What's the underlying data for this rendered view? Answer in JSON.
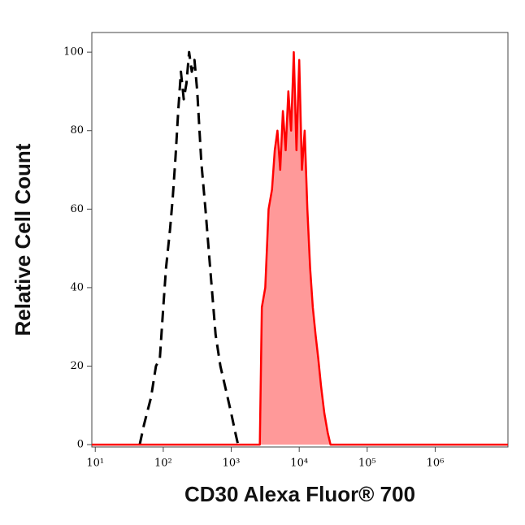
{
  "chart_data": {
    "type": "histogram-overlay",
    "xlabel": "CD30 Alexa Fluor® 700",
    "ylabel": "Relative Cell Count",
    "xscale": "log",
    "xlim": [
      8.9,
      11750000
    ],
    "xticks": [
      {
        "value": 10,
        "label": "10¹"
      },
      {
        "value": 100,
        "label": "10²"
      },
      {
        "value": 1000,
        "label": "10³"
      },
      {
        "value": 10000,
        "label": "10⁴"
      },
      {
        "value": 100000,
        "label": "10⁵"
      },
      {
        "value": 1000000,
        "label": "10⁶"
      }
    ],
    "ylim": [
      -0.6,
      105
    ],
    "yticks": [
      0,
      20,
      40,
      60,
      80,
      100
    ],
    "series": [
      {
        "color": "#000000",
        "line_style": "dashed",
        "x": [
          45,
          52,
          66,
          78,
          89,
          100,
          110,
          126,
          138,
          151,
          166,
          182,
          200,
          219,
          240,
          263,
          288,
          316,
          363,
          417,
          490,
          589,
          692,
          832,
          1000,
          1148,
          1259
        ],
        "values": [
          0,
          5,
          12,
          20,
          22,
          35,
          45,
          55,
          63,
          73,
          85,
          95,
          88,
          92,
          100,
          95,
          98,
          90,
          72,
          60,
          45,
          28,
          20,
          14,
          8,
          3,
          0
        ]
      },
      {
        "color": "#ff0000",
        "fill": "#ff9999",
        "line_style": "solid",
        "x": [
          8.9,
          2630,
          2818,
          3162,
          3548,
          3981,
          4365,
          4786,
          5248,
          5754,
          6310,
          6918,
          7586,
          8318,
          9120,
          10000,
          10965,
          12023,
          13183,
          14454,
          15849,
          17378,
          19055,
          20893,
          23442,
          26303,
          28840,
          11750000
        ],
        "values": [
          0,
          0,
          35,
          40,
          60,
          65,
          75,
          80,
          70,
          85,
          75,
          90,
          80,
          100,
          75,
          98,
          70,
          80,
          60,
          45,
          35,
          28,
          22,
          15,
          8,
          3,
          0,
          0
        ]
      }
    ]
  }
}
